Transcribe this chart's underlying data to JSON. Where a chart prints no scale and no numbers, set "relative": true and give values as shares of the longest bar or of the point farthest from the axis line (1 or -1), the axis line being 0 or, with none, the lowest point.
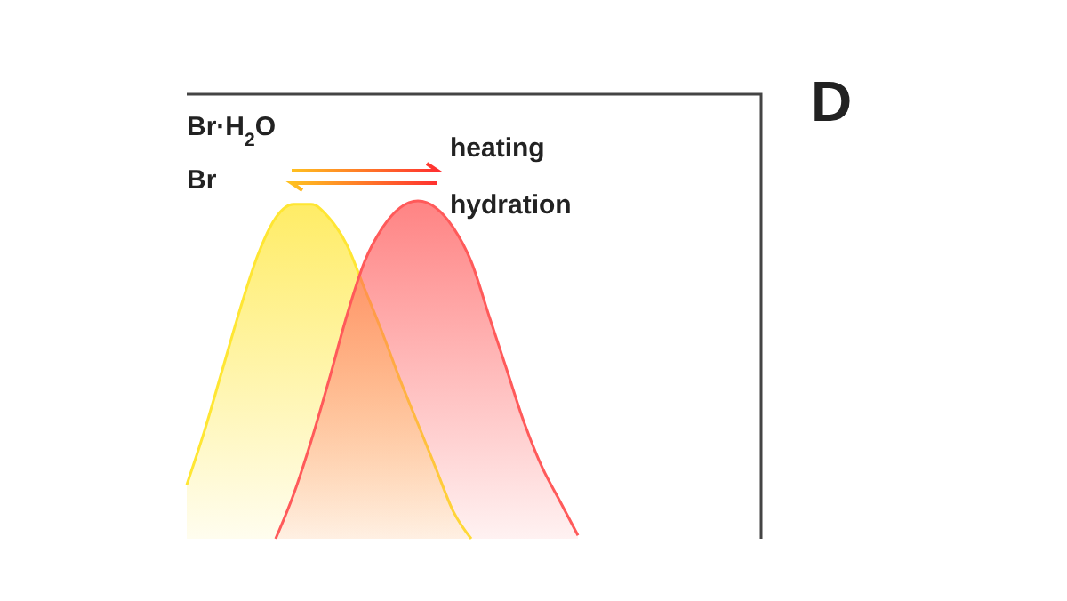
{
  "chart_data": {
    "type": "area",
    "relative": true,
    "categories": [
      null,
      null,
      null,
      null,
      null,
      null,
      null,
      null,
      null,
      null,
      null,
      null,
      null,
      null,
      null,
      null,
      null,
      null,
      null,
      null,
      null,
      null,
      null,
      null,
      null,
      null,
      null,
      null,
      null,
      null,
      null,
      null,
      null
    ],
    "series": [
      {
        "color": "#ffe633",
        "values": [
          0.16,
          0.32,
          0.5,
          0.68,
          0.84,
          0.95,
          0.99,
          0.99,
          0.95,
          0.87,
          0.74,
          0.61,
          0.47,
          0.34,
          0.21,
          0.08,
          0,
          null,
          null,
          null,
          null,
          null,
          null,
          null,
          null,
          null,
          null,
          null,
          null,
          null,
          null,
          null,
          null
        ]
      },
      {
        "color": "#ff5a5a",
        "values": [
          null,
          null,
          null,
          null,
          null,
          0,
          0.13,
          0.29,
          0.47,
          0.66,
          0.82,
          0.92,
          0.98,
          1,
          0.98,
          0.92,
          0.82,
          0.66,
          0.5,
          0.34,
          0.21,
          0.11,
          0.01,
          null,
          null,
          null,
          null,
          null,
          null,
          null,
          null,
          null,
          null
        ]
      }
    ],
    "annotations": [
      "Br·H$_{2}$O",
      "Br",
      "heating",
      "hydration",
      "D"
    ]
  }
}
